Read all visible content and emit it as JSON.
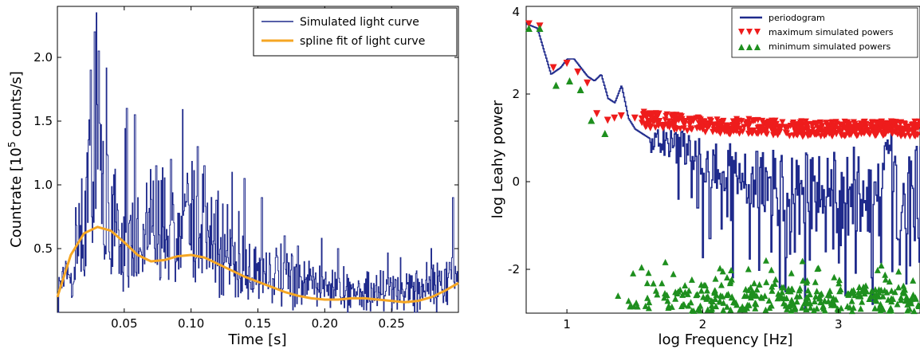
{
  "colors": {
    "series_blue": "#1f2a8c",
    "spline_orange": "#f5a623",
    "max_red": "#ee1c1c",
    "min_green": "#1e8f1e"
  },
  "chart_data": [
    {
      "type": "line",
      "xlabel": "Time [s]",
      "ylabel_parts": [
        "Countrate [10",
        "5",
        " counts/s]"
      ],
      "xlim": [
        0,
        0.3
      ],
      "ylim": [
        0,
        2.4
      ],
      "xticks": [
        {
          "v": 0.05,
          "label": "0.05"
        },
        {
          "v": 0.1,
          "label": "0.10"
        },
        {
          "v": 0.15,
          "label": "0.15"
        },
        {
          "v": 0.2,
          "label": "0.20"
        },
        {
          "v": 0.25,
          "label": "0.25"
        }
      ],
      "yticks": [
        {
          "v": 0.5,
          "label": "0.5"
        },
        {
          "v": 1.0,
          "label": "1.0"
        },
        {
          "v": 1.5,
          "label": "1.5"
        },
        {
          "v": 2.0,
          "label": "2.0"
        }
      ],
      "legend_position": "top-right",
      "series": [
        {
          "name": "Simulated light curve",
          "style": "noisy-step",
          "x": [
            0,
            0.01,
            0.02,
            0.025,
            0.03,
            0.035,
            0.04,
            0.05,
            0.06,
            0.07,
            0.08,
            0.09,
            0.1,
            0.11,
            0.12,
            0.13,
            0.14,
            0.15,
            0.16,
            0.18,
            0.2,
            0.22,
            0.24,
            0.26,
            0.28,
            0.3
          ],
          "y": [
            0.2,
            0.4,
            0.8,
            1.1,
            1.2,
            1.0,
            0.8,
            0.55,
            0.6,
            0.75,
            0.75,
            0.5,
            0.8,
            0.65,
            0.4,
            0.45,
            0.4,
            0.35,
            0.35,
            0.25,
            0.22,
            0.2,
            0.18,
            0.2,
            0.25,
            0.3
          ],
          "peaks": [
            [
              0.028,
              2.2
            ],
            [
              0.031,
              2.05
            ],
            [
              0.025,
              1.9
            ],
            [
              0.052,
              1.6
            ],
            [
              0.058,
              1.55
            ],
            [
              0.105,
              1.3
            ],
            [
              0.11,
              1.15
            ],
            [
              0.074,
              1.15
            ],
            [
              0.085,
              1.2
            ],
            [
              0.14,
              1.05
            ],
            [
              0.153,
              0.9
            ],
            [
              0.119,
              0.88
            ],
            [
              0.296,
              0.9
            ],
            [
              0.17,
              0.6
            ],
            [
              0.18,
              0.52
            ],
            [
              0.21,
              0.5
            ]
          ]
        },
        {
          "name": "spline fit of light curve",
          "style": "smooth",
          "x": [
            0,
            0.01,
            0.02,
            0.03,
            0.04,
            0.05,
            0.06,
            0.07,
            0.08,
            0.09,
            0.1,
            0.11,
            0.12,
            0.13,
            0.14,
            0.15,
            0.16,
            0.17,
            0.18,
            0.19,
            0.2,
            0.21,
            0.22,
            0.23,
            0.24,
            0.25,
            0.26,
            0.27,
            0.28,
            0.29,
            0.3
          ],
          "y": [
            0.12,
            0.45,
            0.62,
            0.67,
            0.64,
            0.55,
            0.45,
            0.4,
            0.41,
            0.44,
            0.45,
            0.43,
            0.38,
            0.33,
            0.28,
            0.24,
            0.2,
            0.16,
            0.13,
            0.11,
            0.1,
            0.1,
            0.11,
            0.11,
            0.1,
            0.09,
            0.08,
            0.09,
            0.12,
            0.17,
            0.23
          ]
        }
      ]
    },
    {
      "type": "line",
      "xlabel": "log Frequency [Hz]",
      "ylabel": "log Leahy power",
      "xlim": [
        0.7,
        3.6
      ],
      "ylim": [
        -3,
        4
      ],
      "xticks": [
        {
          "v": 1,
          "label": "1"
        },
        {
          "v": 2,
          "label": "2"
        },
        {
          "v": 3,
          "label": "3"
        }
      ],
      "yticks": [
        {
          "v": 4,
          "label": "4"
        },
        {
          "v": 2,
          "label": "2"
        },
        {
          "v": 0,
          "label": "0"
        },
        {
          "v": -2,
          "label": "-2"
        }
      ],
      "legend_position": "top-right",
      "series": [
        {
          "name": "periodogram",
          "style": "step",
          "x": [
            0.7,
            0.78,
            0.88,
            0.95,
            1.0,
            1.05,
            1.1,
            1.15,
            1.2,
            1.25,
            1.3,
            1.35,
            1.4,
            1.45,
            1.5,
            1.55,
            1.6,
            1.7,
            1.8,
            1.9,
            2.0,
            2.2,
            2.4,
            2.6,
            2.8,
            3.0,
            3.2,
            3.4,
            3.6
          ],
          "y": [
            3.6,
            3.5,
            2.45,
            2.6,
            2.8,
            2.8,
            2.6,
            2.4,
            2.3,
            2.45,
            1.9,
            1.8,
            2.2,
            1.45,
            1.2,
            1.1,
            1.0,
            1.0,
            0.85,
            0.7,
            0.5,
            0.3,
            0.1,
            0.0,
            -0.1,
            0.0,
            0.0,
            0.0,
            0.0
          ],
          "dips": [
            [
              1.82,
              -0.4
            ],
            [
              1.96,
              -0.6
            ],
            [
              2.05,
              -1.3
            ],
            [
              2.18,
              -0.8
            ],
            [
              2.35,
              -0.5
            ],
            [
              2.55,
              -1.0
            ],
            [
              2.75,
              -2.9
            ],
            [
              2.9,
              -1.6
            ],
            [
              3.05,
              -2.6
            ],
            [
              3.25,
              -2.8
            ],
            [
              3.45,
              -1.9
            ]
          ]
        },
        {
          "name": "maximum simulated powers",
          "style": "marker-down",
          "x": [
            0.72,
            0.8,
            0.9,
            1.0,
            1.08,
            1.15,
            1.22,
            1.3,
            1.35,
            1.4,
            1.5,
            1.6,
            1.8,
            2.0,
            2.2,
            2.4,
            2.6,
            2.8,
            3.0,
            3.2,
            3.4,
            3.6
          ],
          "y": [
            3.6,
            3.55,
            2.6,
            2.7,
            2.5,
            2.25,
            1.55,
            1.4,
            1.45,
            1.5,
            1.45,
            1.4,
            1.35,
            1.3,
            1.25,
            1.25,
            1.2,
            1.2,
            1.2,
            1.2,
            1.2,
            1.2
          ]
        },
        {
          "name": "minimum simulated powers",
          "style": "marker-up",
          "x": [
            0.72,
            0.8,
            0.92,
            1.02,
            1.1,
            1.18,
            1.28,
            1.33,
            1.45,
            1.55,
            1.7,
            1.9,
            2.1,
            2.3,
            2.5,
            2.7,
            2.9,
            3.1,
            3.3,
            3.5
          ],
          "y": [
            3.5,
            3.5,
            2.2,
            2.3,
            2.1,
            1.4,
            1.1,
            -2.2,
            -2.3,
            -2.4,
            -2.45,
            -2.5,
            -2.5,
            -2.5,
            -2.5,
            -2.5,
            -2.5,
            -2.5,
            -2.5,
            -2.5
          ]
        }
      ]
    }
  ]
}
